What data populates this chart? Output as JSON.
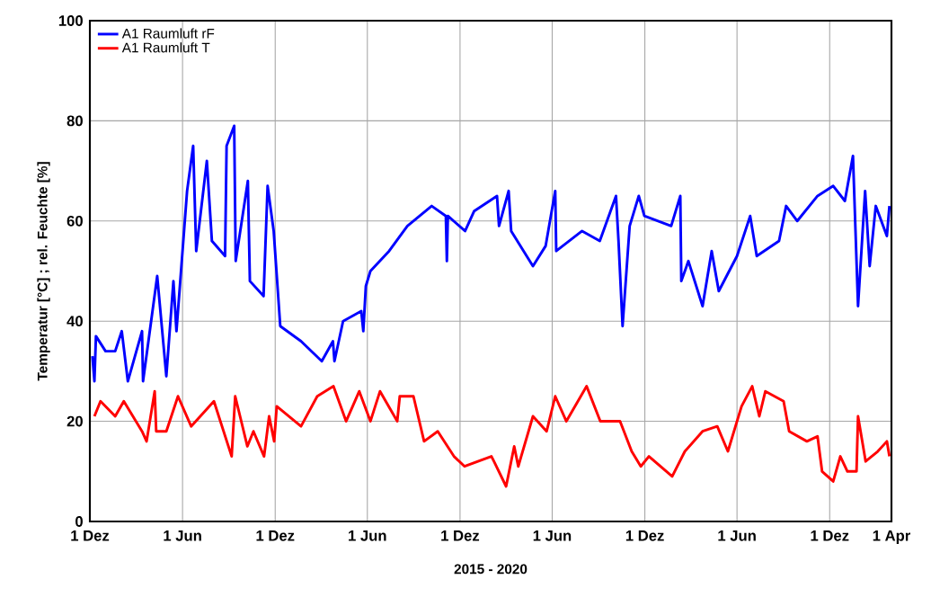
{
  "chart_data": {
    "type": "line",
    "xlabel": "2015 - 2020",
    "ylabel": "Temperatur [°C] ; rel. Feuchte [%]",
    "xlim": [
      "2015-12-01",
      "2020-04-01"
    ],
    "ylim": [
      0,
      100
    ],
    "xticks": [
      {
        "value": "2015-12-01",
        "label": "1 Dez"
      },
      {
        "value": "2016-06-01",
        "label": "1 Jun"
      },
      {
        "value": "2016-12-01",
        "label": "1 Dez"
      },
      {
        "value": "2017-06-01",
        "label": "1 Jun"
      },
      {
        "value": "2017-12-01",
        "label": "1 Dez"
      },
      {
        "value": "2018-06-01",
        "label": "1 Jun"
      },
      {
        "value": "2018-12-01",
        "label": "1 Dez"
      },
      {
        "value": "2019-06-01",
        "label": "1 Jun"
      },
      {
        "value": "2019-12-01",
        "label": "1 Dez"
      },
      {
        "value": "2020-04-01",
        "label": "1 Apr"
      }
    ],
    "yticks": [
      0,
      20,
      40,
      60,
      80,
      100
    ],
    "grid": true,
    "legend": "top left",
    "series": [
      {
        "name": "A1 Raumluft rF",
        "color": "#0000ff",
        "x": [
          "2015-12-06",
          "2015-12-10",
          "2015-12-13",
          "2016-01-01",
          "2016-01-20",
          "2016-02-02",
          "2016-02-14",
          "2016-03-13",
          "2016-03-15",
          "2016-04-12",
          "2016-04-30",
          "2016-05-14",
          "2016-05-20",
          "2016-06-10",
          "2016-06-22",
          "2016-06-28",
          "2016-07-19",
          "2016-07-29",
          "2016-08-24",
          "2016-08-27",
          "2016-09-11",
          "2016-09-14",
          "2016-10-08",
          "2016-10-12",
          "2016-11-08",
          "2016-11-16",
          "2016-11-28",
          "2016-12-11",
          "2017-01-21",
          "2017-03-03",
          "2017-03-25",
          "2017-03-28",
          "2017-04-14",
          "2017-05-20",
          "2017-05-24",
          "2017-05-29",
          "2017-06-07",
          "2017-07-14",
          "2017-08-19",
          "2017-10-06",
          "2017-11-03",
          "2017-11-05",
          "2017-11-07",
          "2017-12-11",
          "2017-12-29",
          "2018-02-12",
          "2018-02-16",
          "2018-03-07",
          "2018-03-12",
          "2018-04-24",
          "2018-05-19",
          "2018-06-07",
          "2018-06-09",
          "2018-07-30",
          "2018-09-03",
          "2018-10-05",
          "2018-10-10",
          "2018-10-18",
          "2018-11-01",
          "2018-11-19",
          "2018-11-30",
          "2019-01-22",
          "2019-02-09",
          "2019-02-11",
          "2019-02-25",
          "2019-03-25",
          "2019-04-12",
          "2019-04-26",
          "2019-06-01",
          "2019-06-27",
          "2019-07-10",
          "2019-08-23",
          "2019-09-06",
          "2019-09-28",
          "2019-11-07",
          "2019-12-08",
          "2019-12-31",
          "2020-01-16",
          "2020-01-26",
          "2020-02-09",
          "2020-02-18",
          "2020-03-01",
          "2020-03-23",
          "2020-03-28"
        ],
        "values": [
          33,
          28,
          37,
          34,
          34,
          38,
          28,
          38,
          28,
          49,
          29,
          48,
          38,
          66,
          75,
          54,
          72,
          56,
          53,
          75,
          79,
          52,
          68,
          48,
          45,
          67,
          58,
          39,
          36,
          32,
          36,
          32,
          40,
          42,
          38,
          47,
          50,
          54,
          59,
          63,
          61,
          52,
          61,
          58,
          62,
          65,
          59,
          66,
          58,
          51,
          55,
          66,
          54,
          58,
          56,
          65,
          56,
          39,
          59,
          65,
          61,
          59,
          65,
          48,
          52,
          43,
          54,
          46,
          53,
          61,
          53,
          56,
          63,
          60,
          65,
          67,
          64,
          73,
          43,
          66,
          51,
          63,
          57,
          63
        ]
      },
      {
        "name": "A1 Raumluft T",
        "color": "#ff0000",
        "x": [
          "2015-12-10",
          "2015-12-22",
          "2016-01-20",
          "2016-02-06",
          "2016-03-13",
          "2016-03-22",
          "2016-04-07",
          "2016-04-10",
          "2016-04-30",
          "2016-05-23",
          "2016-06-18",
          "2016-08-02",
          "2016-09-06",
          "2016-09-13",
          "2016-10-07",
          "2016-10-19",
          "2016-11-09",
          "2016-11-19",
          "2016-11-29",
          "2016-12-04",
          "2017-01-21",
          "2017-02-22",
          "2017-03-26",
          "2017-04-20",
          "2017-05-16",
          "2017-06-07",
          "2017-06-26",
          "2017-07-30",
          "2017-08-04",
          "2017-08-31",
          "2017-09-21",
          "2017-10-18",
          "2017-11-19",
          "2017-12-10",
          "2018-02-01",
          "2018-02-06",
          "2018-03-02",
          "2018-03-18",
          "2018-03-26",
          "2018-04-24",
          "2018-05-21",
          "2018-06-07",
          "2018-06-29",
          "2018-08-08",
          "2018-09-04",
          "2018-10-13",
          "2018-11-05",
          "2018-11-23",
          "2018-12-09",
          "2019-01-24",
          "2019-02-18",
          "2019-03-25",
          "2019-04-23",
          "2019-05-14",
          "2019-06-10",
          "2019-07-01",
          "2019-07-15",
          "2019-07-27",
          "2019-09-01",
          "2019-09-12",
          "2019-10-17",
          "2019-11-07",
          "2019-11-16",
          "2019-12-08",
          "2019-12-22",
          "2020-01-05",
          "2020-01-23",
          "2020-01-26",
          "2020-02-10",
          "2020-03-05",
          "2020-03-23",
          "2020-03-28"
        ],
        "values": [
          21,
          24,
          21,
          24,
          18,
          16,
          26,
          18,
          18,
          25,
          19,
          24,
          13,
          25,
          15,
          18,
          13,
          21,
          16,
          23,
          19,
          25,
          27,
          20,
          26,
          20,
          26,
          20,
          25,
          25,
          16,
          18,
          13,
          11,
          13,
          12,
          7,
          15,
          11,
          21,
          18,
          25,
          20,
          27,
          20,
          20,
          14,
          11,
          13,
          9,
          14,
          18,
          19,
          14,
          23,
          27,
          21,
          26,
          24,
          18,
          16,
          17,
          10,
          8,
          13,
          10,
          10,
          21,
          12,
          14,
          16,
          13
        ]
      }
    ]
  }
}
